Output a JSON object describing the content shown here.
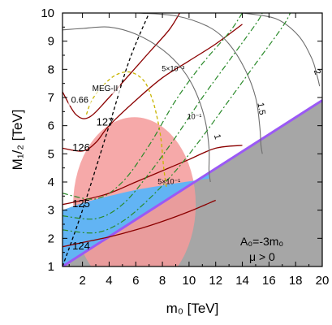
{
  "chart_data": {
    "type": "line",
    "xlabel": "m₀ [TeV]",
    "ylabel": "M₁/₂ [TeV]",
    "xlim": [
      0.5,
      20
    ],
    "ylim": [
      1,
      10
    ],
    "xticks": [
      "2",
      "4",
      "6",
      "8",
      "10",
      "12",
      "14",
      "16",
      "18",
      "20"
    ],
    "yticks": [
      "1",
      "2",
      "3",
      "4",
      "5",
      "6",
      "7",
      "8",
      "9",
      "10"
    ],
    "parameters": [
      "A₀=-3m₀",
      "μ > 0"
    ],
    "colors": {
      "higgs_mass": "#8b0000",
      "tau_lifetime": "#6e6e6e",
      "meg": "#000000",
      "bsmumu": "#c8b400",
      "proton_decay": "#2a8a2a",
      "ellipse": "#f49a9a",
      "dm_band": "#62b4f4",
      "stau_lsp": "#a6a6a6",
      "boundary": "#9b59f5"
    },
    "regions": {
      "stau_lsp_boundary": [
        [
          0.5,
          1
        ],
        [
          20,
          6.9
        ]
      ],
      "dm_band_top": [
        [
          0.5,
          3.0
        ],
        [
          2,
          3.25
        ],
        [
          4,
          3.5
        ],
        [
          6,
          3.72
        ],
        [
          8,
          3.88
        ],
        [
          10,
          4.02
        ],
        [
          11.5,
          4.12
        ]
      ],
      "ellipse": {
        "cx": 5.9,
        "cy": 3.2,
        "rx": 4.6,
        "ry": 3.1
      }
    },
    "annotations": [
      "127",
      "126",
      "125",
      "124",
      "0.66",
      "MEG-II",
      "1",
      "1.5",
      "2",
      "5×10⁻³",
      "10⁻¹",
      "5×10⁻¹"
    ],
    "series": [
      {
        "name": "124",
        "kind": "higgs_mass",
        "points": [
          [
            0.5,
            1.7
          ],
          [
            2,
            1.85
          ],
          [
            4,
            2.05
          ],
          [
            6,
            2.3
          ],
          [
            8,
            2.6
          ],
          [
            10,
            2.95
          ],
          [
            12,
            3.35
          ]
        ]
      },
      {
        "name": "125",
        "kind": "higgs_mass",
        "points": [
          [
            0.5,
            3.2
          ],
          [
            2,
            3.35
          ],
          [
            4,
            3.6
          ],
          [
            6,
            4.0
          ],
          [
            8,
            4.4
          ],
          [
            10,
            4.8
          ],
          [
            12,
            5.2
          ],
          [
            14,
            5.3
          ]
        ]
      },
      {
        "name": "126",
        "kind": "higgs_mass",
        "points": [
          [
            0.5,
            5.2
          ],
          [
            2,
            5.1
          ],
          [
            3,
            5.4
          ],
          [
            4,
            6.0
          ],
          [
            6,
            6.9
          ],
          [
            8,
            7.7
          ],
          [
            10,
            8.3
          ],
          [
            12,
            8.9
          ],
          [
            14,
            9.6
          ]
        ]
      },
      {
        "name": "127",
        "kind": "higgs_mass",
        "points": [
          [
            0.5,
            7.2
          ],
          [
            1.5,
            6.4
          ],
          [
            2.5,
            6.3
          ],
          [
            4,
            7.0
          ],
          [
            5.5,
            7.8
          ],
          [
            7,
            8.6
          ],
          [
            8.5,
            9.4
          ],
          [
            9.3,
            10
          ]
        ]
      },
      {
        "name": "MEG-II",
        "kind": "meg",
        "points": [
          [
            0.5,
            1.0
          ],
          [
            2,
            3.0
          ],
          [
            4,
            6.0
          ],
          [
            5.5,
            8.3
          ],
          [
            7,
            10
          ]
        ]
      },
      {
        "name": "0.66",
        "kind": "bsmumu",
        "points": [
          [
            2.3,
            6.4
          ],
          [
            2.7,
            6.9
          ],
          [
            3.5,
            7.4
          ],
          [
            4.5,
            7.8
          ],
          [
            5.6,
            7.9
          ],
          [
            6.6,
            7.6
          ],
          [
            7.2,
            7.0
          ],
          [
            7.6,
            6.3
          ],
          [
            7.9,
            5.5
          ],
          [
            8.1,
            4.5
          ],
          [
            8.3,
            3.8
          ]
        ]
      },
      {
        "name": "τ 1",
        "kind": "tau_lifetime",
        "points": [
          [
            0.5,
            9.4
          ],
          [
            2,
            9.45
          ],
          [
            4,
            9.5
          ],
          [
            6,
            9.25
          ],
          [
            8,
            8.7
          ],
          [
            9.5,
            8.0
          ],
          [
            10.5,
            7.2
          ],
          [
            11.2,
            6.2
          ],
          [
            11.5,
            5.2
          ],
          [
            11.5,
            4.4
          ],
          [
            11.6,
            4.0
          ]
        ]
      },
      {
        "name": "τ 1.5",
        "kind": "tau_lifetime",
        "points": [
          [
            6,
            10
          ],
          [
            9,
            9.9
          ],
          [
            11.5,
            9.5
          ],
          [
            13,
            8.9
          ],
          [
            14.2,
            8.0
          ],
          [
            15,
            7.0
          ],
          [
            15.3,
            6.0
          ],
          [
            15.4,
            5.3
          ],
          [
            15.5,
            5.0
          ]
        ]
      },
      {
        "name": "τ 2",
        "kind": "tau_lifetime",
        "points": [
          [
            14,
            10
          ],
          [
            16.5,
            9.8
          ],
          [
            18.2,
            9.2
          ],
          [
            19.2,
            8.4
          ],
          [
            19.6,
            7.8
          ],
          [
            19.8,
            7.4
          ]
        ]
      },
      {
        "name": "5×10⁻³",
        "kind": "proton_decay",
        "points": [
          [
            0.5,
            3.6
          ],
          [
            3,
            3.4
          ],
          [
            5,
            4.0
          ],
          [
            7,
            5.3
          ],
          [
            9,
            6.9
          ],
          [
            11,
            8.2
          ],
          [
            13,
            9.3
          ],
          [
            14,
            10
          ]
        ]
      },
      {
        "name": "10⁻¹",
        "kind": "proton_decay",
        "points": [
          [
            0.5,
            2.8
          ],
          [
            3,
            2.7
          ],
          [
            5,
            3.2
          ],
          [
            7,
            4.3
          ],
          [
            9,
            5.6
          ],
          [
            11,
            7.0
          ],
          [
            13,
            8.3
          ],
          [
            15,
            9.6
          ],
          [
            15.5,
            10
          ]
        ]
      },
      {
        "name": "5×10⁻¹",
        "kind": "proton_decay",
        "points": [
          [
            0.5,
            2.3
          ],
          [
            3,
            2.2
          ],
          [
            5,
            2.6
          ],
          [
            7,
            3.4
          ],
          [
            9,
            4.4
          ],
          [
            11,
            5.6
          ],
          [
            13,
            6.9
          ],
          [
            15,
            8.2
          ],
          [
            17,
            9.5
          ],
          [
            17.6,
            10
          ]
        ]
      }
    ]
  }
}
